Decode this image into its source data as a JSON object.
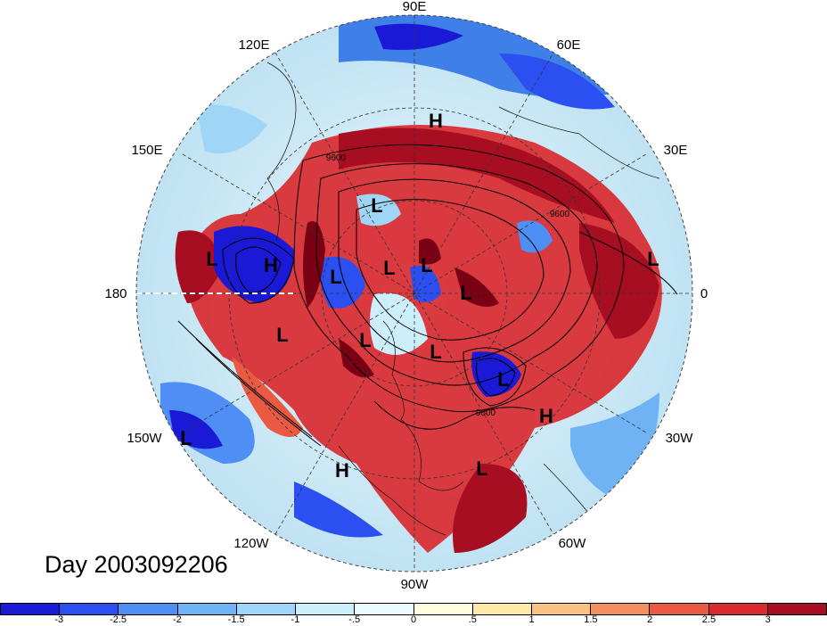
{
  "map": {
    "projection": "north-polar-stereographic",
    "longitude_labels": [
      "90E",
      "60E",
      "30E",
      "0",
      "30W",
      "60W",
      "90W",
      "120W",
      "150W",
      "180",
      "150E",
      "120E"
    ],
    "contour_labels": [
      "9600",
      "9600",
      "9600"
    ],
    "pressure_centers": [
      {
        "symbol": "H"
      },
      {
        "symbol": "L"
      },
      {
        "symbol": "L"
      },
      {
        "symbol": "H"
      },
      {
        "symbol": "L"
      },
      {
        "symbol": "L"
      },
      {
        "symbol": "L"
      },
      {
        "symbol": "L"
      },
      {
        "symbol": "L"
      },
      {
        "symbol": "L"
      },
      {
        "symbol": "L"
      },
      {
        "symbol": "L"
      },
      {
        "symbol": "L"
      },
      {
        "symbol": "H"
      },
      {
        "symbol": "L"
      },
      {
        "symbol": "H"
      },
      {
        "symbol": "L"
      }
    ]
  },
  "title": "Day 2003092206",
  "colorbar": {
    "colors": [
      "#1a1ad6",
      "#2b4ff0",
      "#4f8ef5",
      "#6fb3f5",
      "#9fd6f8",
      "#cdeefb",
      "#eafafe",
      "#fffde0",
      "#fde9a8",
      "#f9c183",
      "#f2915f",
      "#ea5a43",
      "#d92a2f",
      "#a80e22"
    ],
    "tick_labels": [
      "-3",
      "-2.5",
      "-2",
      "-1.5",
      "-1",
      "-.5",
      "0",
      ".5",
      "1",
      "1.5",
      "2",
      "2.5",
      "3"
    ]
  }
}
